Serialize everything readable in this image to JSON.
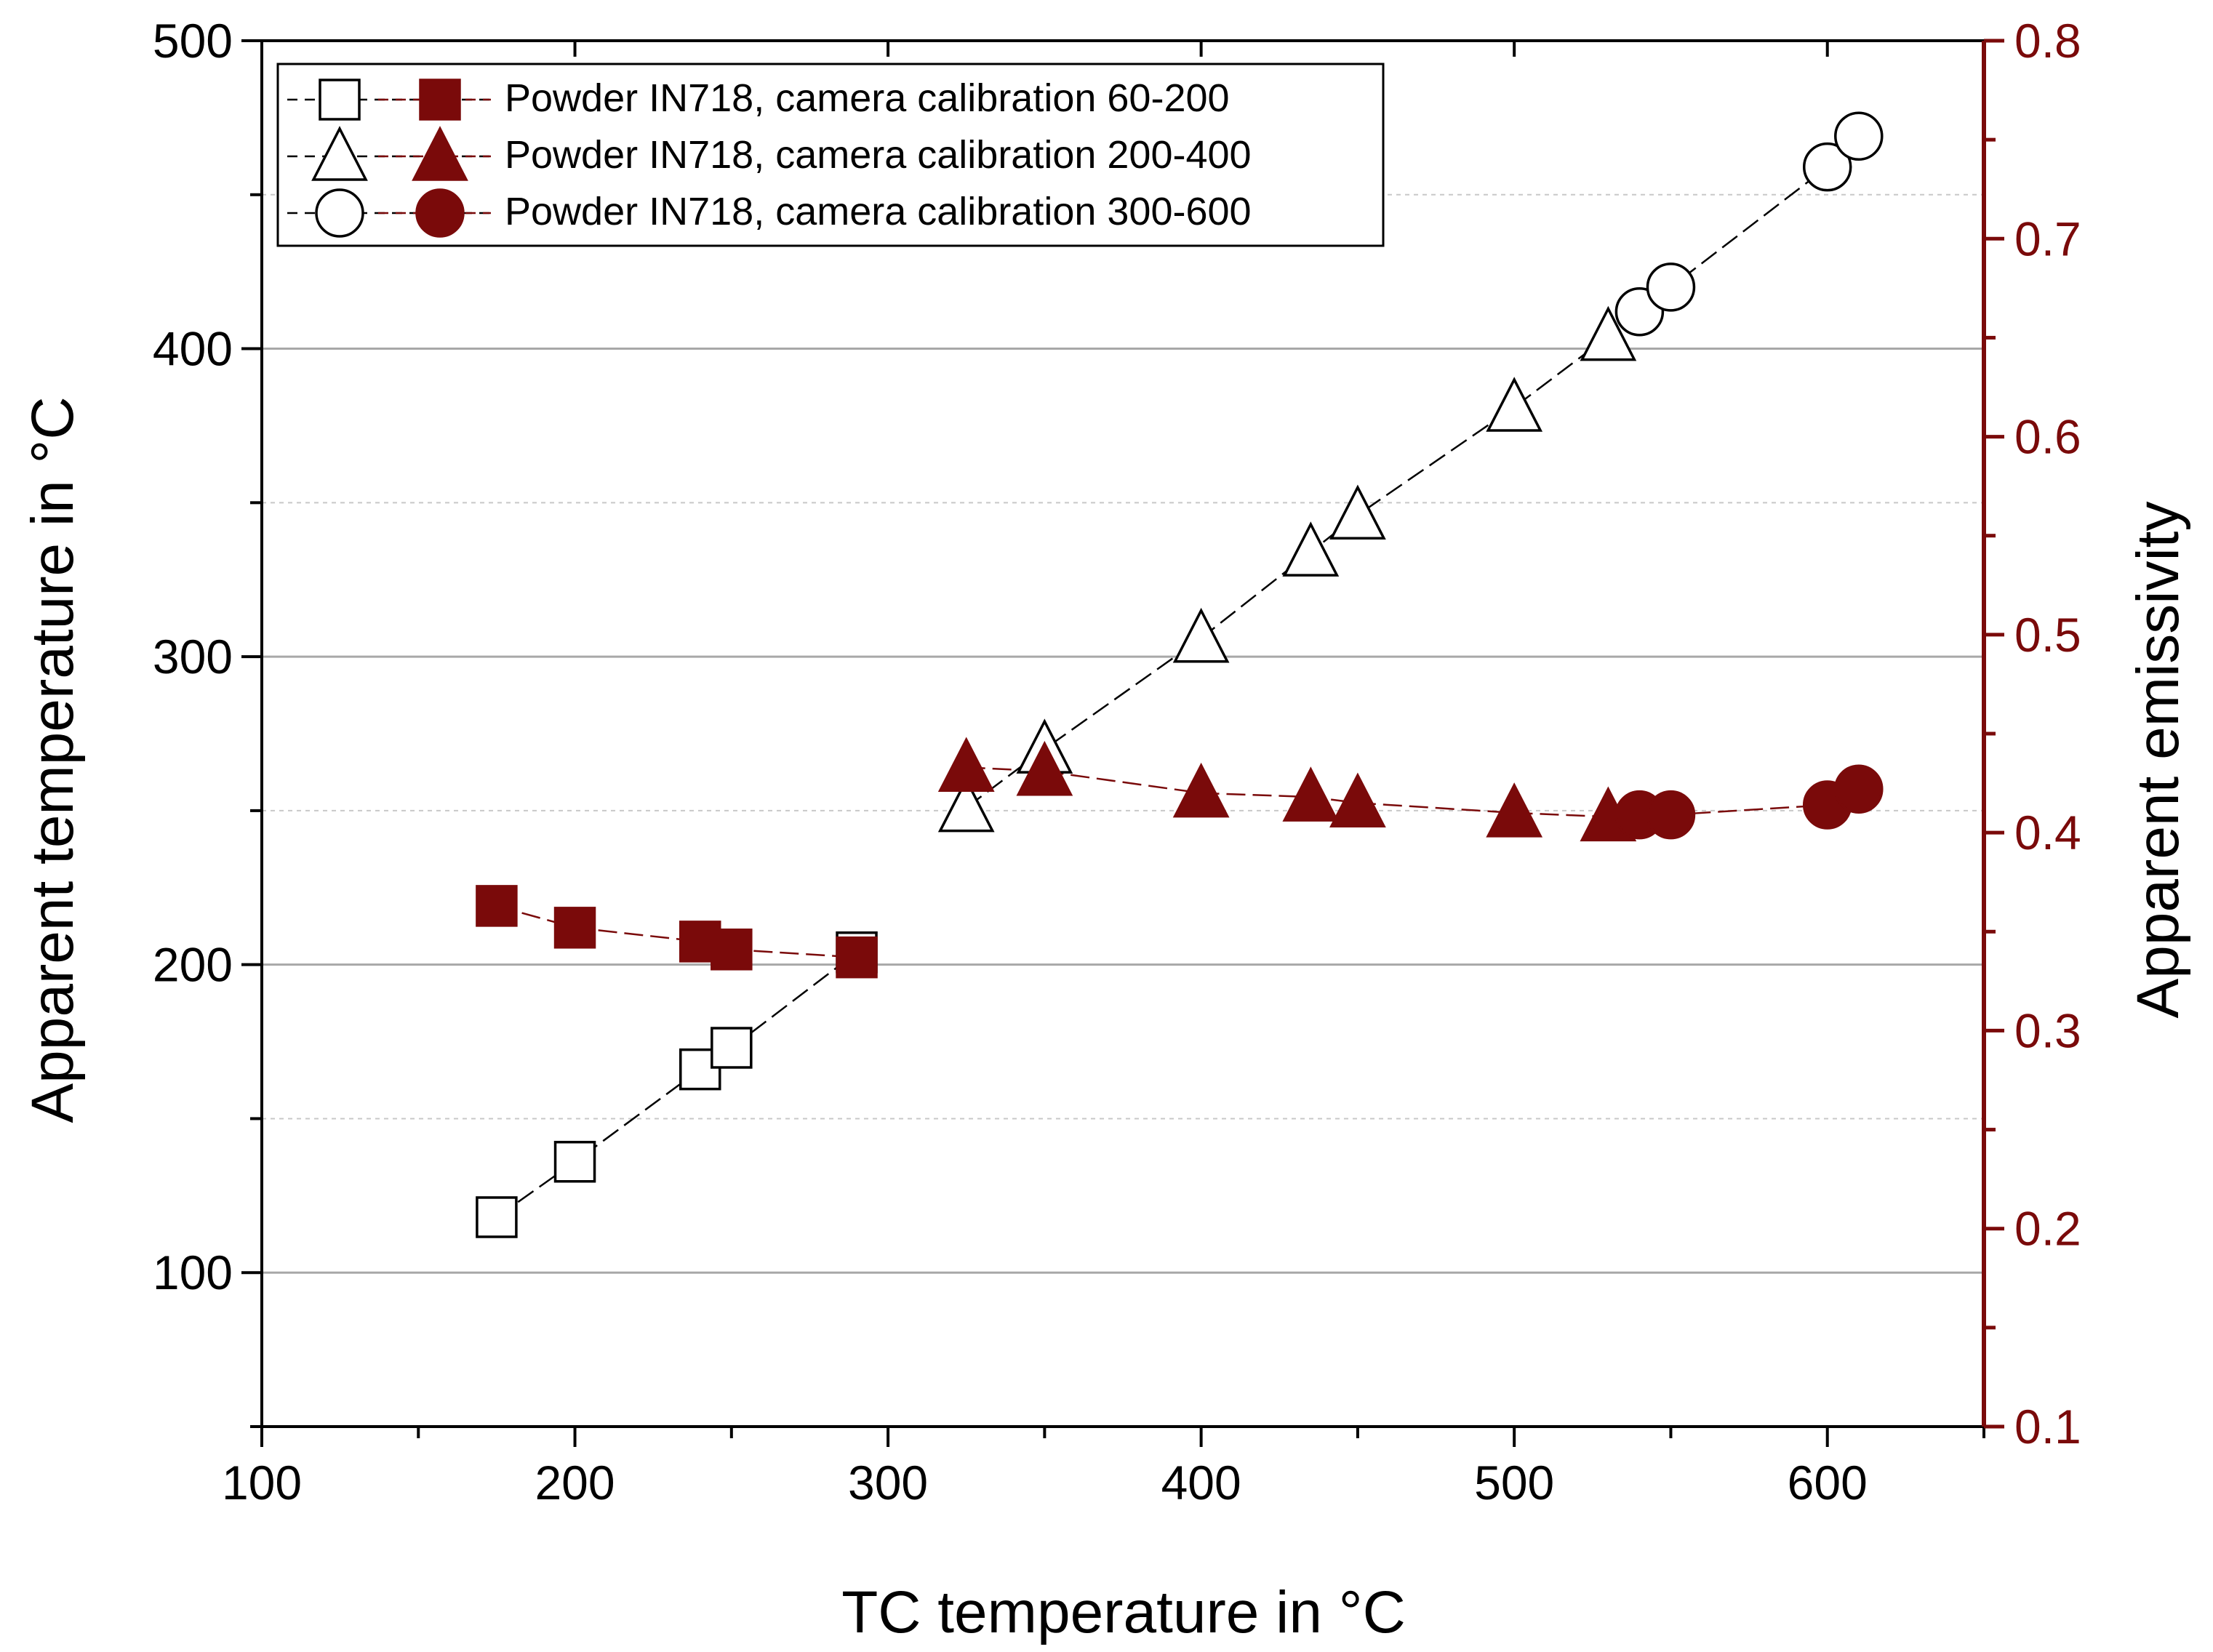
{
  "chart_data": {
    "type": "scatter",
    "xlabel": "TC temperature in °C",
    "ylabel": "Apparent temperature in °C",
    "y2label": "Apparent emissivity",
    "xlim": [
      100,
      650
    ],
    "ylim": [
      50,
      500
    ],
    "y2lim": [
      0.1,
      0.8
    ],
    "xticks": [
      "100",
      "200",
      "300",
      "400",
      "500",
      "600"
    ],
    "yticks": [
      "100",
      "200",
      "300",
      "400",
      "500"
    ],
    "y2ticks": [
      "0.1",
      "0.2",
      "0.3",
      "0.4",
      "0.5",
      "0.6",
      "0.7",
      "0.8"
    ],
    "grid": "horizontal",
    "legend_position": "top-left",
    "colors": {
      "temperature": "#000000",
      "emissivity": "#7a0a0a"
    },
    "series": [
      {
        "name": "Powder IN718, camera calibration 60-200",
        "marker": "square",
        "x": [
          175,
          200,
          240,
          250,
          290
        ],
        "temperature": [
          118,
          136,
          166,
          173,
          204
        ],
        "emissivity": [
          0.363,
          0.352,
          0.345,
          0.341,
          0.337
        ]
      },
      {
        "name": "Powder IN718, camera calibration 200-400",
        "marker": "triangle",
        "x": [
          325,
          350,
          400,
          435,
          450,
          500,
          530
        ],
        "temperature": [
          251,
          270,
          306,
          334,
          346,
          381,
          404
        ],
        "emissivity": [
          0.433,
          0.431,
          0.42,
          0.418,
          0.415,
          0.41,
          0.408
        ]
      },
      {
        "name": "Powder IN718, camera calibration 300-600",
        "marker": "circle",
        "x": [
          540,
          550,
          600,
          610
        ],
        "temperature": [
          412,
          420,
          459,
          469
        ],
        "emissivity": [
          0.409,
          0.409,
          0.414,
          0.422
        ]
      }
    ]
  }
}
